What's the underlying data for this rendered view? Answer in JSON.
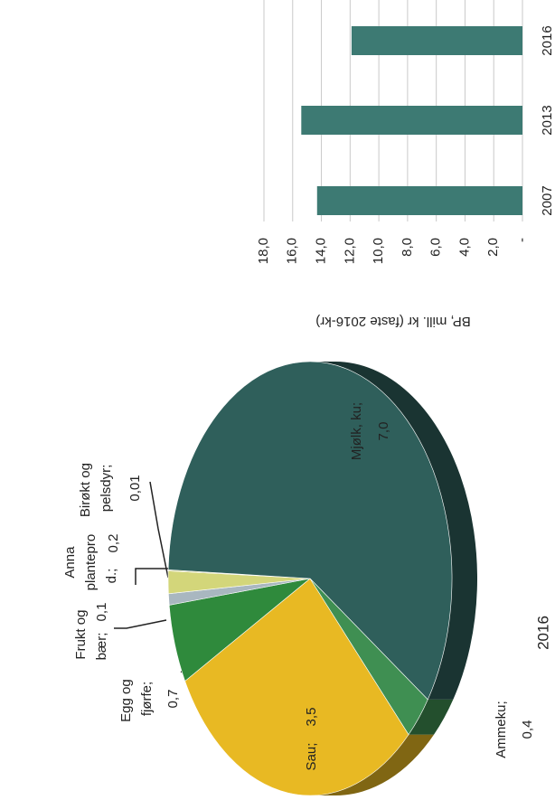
{
  "chart_data": [
    {
      "type": "bar",
      "y_label": "BP, mill. kr (faste 2016-kr)",
      "categories": [
        "2007",
        "2013",
        "2016"
      ],
      "values": [
        14.3,
        15.4,
        11.9
      ],
      "color": "#3d7a73",
      "ylim": [
        0,
        18
      ],
      "yticks": [
        {
          "value": 0,
          "label": "-"
        },
        {
          "value": 2,
          "label": "2,0"
        },
        {
          "value": 4,
          "label": "4,0"
        },
        {
          "value": 6,
          "label": "6,0"
        },
        {
          "value": 8,
          "label": "8,0"
        },
        {
          "value": 10,
          "label": "10,0"
        },
        {
          "value": 12,
          "label": "12,0"
        },
        {
          "value": 14,
          "label": "14,0"
        },
        {
          "value": 16,
          "label": "16,0"
        },
        {
          "value": 18,
          "label": "18,0"
        }
      ],
      "grid": true
    },
    {
      "type": "pie",
      "title": "2016",
      "categories": [
        "Sau;",
        "Egg og fjørfe;",
        "Frukt og bær;",
        "Anna plantepro d.;",
        "Birøkt og pelsdyr;",
        "Mjølk, ku;",
        "Ammeku;"
      ],
      "values": [
        3.5,
        0.7,
        0.1,
        0.2,
        0.01,
        7.0,
        0.4
      ],
      "value_labels": [
        "3,5",
        "0,7",
        "0,1",
        "0,2",
        "0,01",
        "7,0",
        "0,4"
      ],
      "colors": [
        "#e8b923",
        "#2f8a3c",
        "#a9b7c0",
        "#d3d67a",
        "#c9c77c",
        "#2f5f5b",
        "#3f8f52"
      ]
    }
  ]
}
